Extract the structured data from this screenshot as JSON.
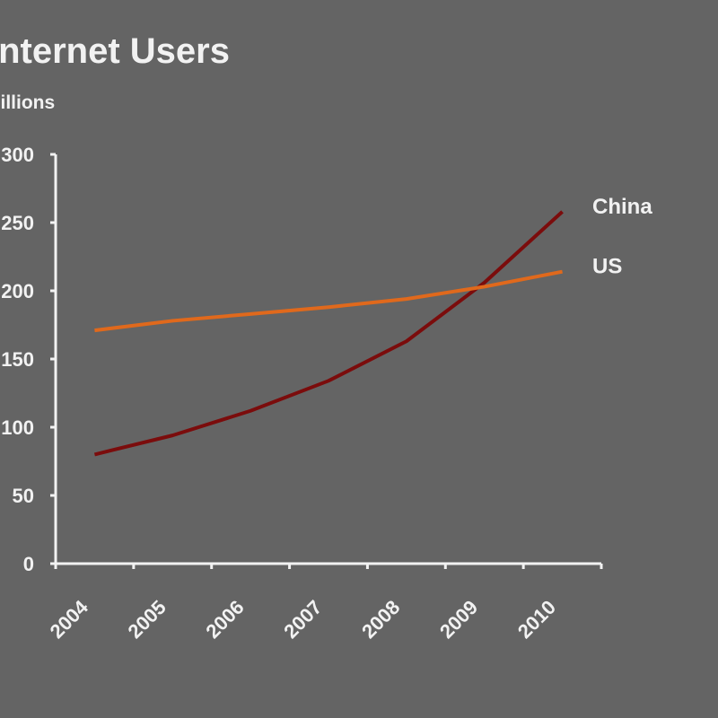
{
  "chart_data": {
    "type": "line",
    "title": "Internet Users",
    "y_label": "Millions",
    "categories": [
      "2004",
      "2005",
      "2006",
      "2007",
      "2008",
      "2009",
      "2010"
    ],
    "series": [
      {
        "name": "China",
        "color": "#7b0c0c",
        "values": [
          80,
          94,
          112,
          134,
          163,
          206,
          258
        ]
      },
      {
        "name": "US",
        "color": "#e0691c",
        "values": [
          171,
          178,
          183,
          188,
          194,
          203,
          214
        ]
      }
    ],
    "ylim": [
      0,
      300
    ],
    "yticks": [
      0,
      50,
      100,
      150,
      200,
      250,
      300
    ]
  }
}
